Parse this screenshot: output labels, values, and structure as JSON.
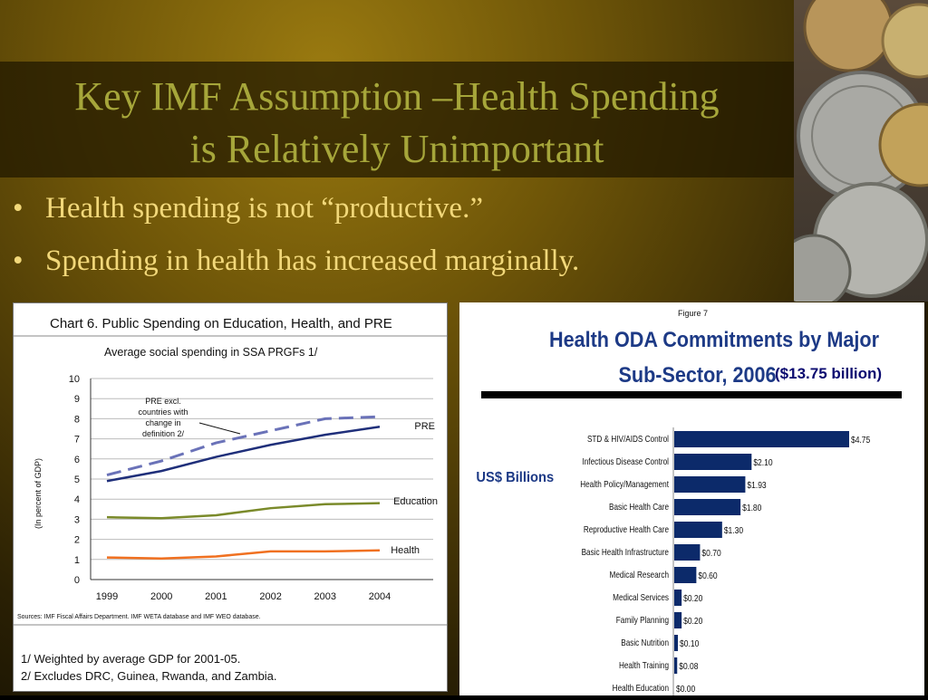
{
  "slide": {
    "title_line1": "Key IMF Assumption –Health Spending",
    "title_line2": "is Relatively Unimportant",
    "bullets": [
      "Health spending is not “productive.”",
      "Spending in health has increased marginally."
    ],
    "bullet_glyph": "•",
    "colors": {
      "title": "#a6a63a",
      "bullets": "#f2d87a"
    }
  },
  "left_chart_text": {
    "header": "Chart 6. Public Spending on Education, Health, and PRE",
    "subtitle": "Average social spending in SSA PRGFs 1/",
    "annotation": [
      "PRE excl.",
      "countries with",
      "change in",
      "definition 2/"
    ],
    "sources": "Sources: IMF Fiscal Affairs Department. IMF WETA database and IMF WEO database.",
    "footnote1": "1/ Weighted by average GDP for 2001-05.",
    "footnote2": "2/  Excludes DRC, Guinea, Rwanda, and Zambia."
  },
  "right_chart_text": {
    "figure_label": "Figure 7",
    "title_line1": "Health ODA Commitments by Major",
    "title_line2": "Sub-Sector, 2006",
    "total": "($13.75 billion)",
    "unit_label": "US$ Billions"
  },
  "chart_data": [
    {
      "type": "line",
      "title": "Average social spending in SSA PRGFs 1/",
      "ylabel": "(In percent of GDP)",
      "x": [
        1999,
        2000,
        2001,
        2002,
        2003,
        2004
      ],
      "x_ticks": [
        "1999",
        "2000",
        "2001",
        "2002",
        "2003",
        "2004"
      ],
      "ylim": [
        0,
        10
      ],
      "y_ticks": [
        "0",
        "1",
        "2",
        "3",
        "4",
        "5",
        "6",
        "7",
        "8",
        "9",
        "10"
      ],
      "grid": true,
      "series": [
        {
          "name": "PRE",
          "values": [
            4.9,
            5.4,
            6.1,
            6.7,
            7.2,
            7.6
          ],
          "color": "#1f2f7a",
          "style": "solid"
        },
        {
          "name": "",
          "values": [
            5.2,
            5.9,
            6.8,
            7.4,
            8.0,
            8.1
          ],
          "color": "#6a72b8",
          "style": "dashed"
        },
        {
          "name": "Education",
          "values": [
            3.1,
            3.05,
            3.2,
            3.55,
            3.75,
            3.8
          ],
          "color": "#7a8a2a",
          "style": "solid"
        },
        {
          "name": "Health",
          "values": [
            1.1,
            1.05,
            1.15,
            1.4,
            1.4,
            1.45
          ],
          "color": "#f07020",
          "style": "solid"
        }
      ]
    },
    {
      "type": "bar",
      "orientation": "horizontal",
      "title": "Health ODA Commitments by Major Sub-Sector, 2006",
      "ylabel": "US$ Billions",
      "color": "#0c2a6a",
      "categories": [
        "STD & HIV/AIDS Control",
        "Infectious Disease Control",
        "Health Policy/Management",
        "Basic Health Care",
        "Reproductive Health Care",
        "Basic Health Infrastructure",
        "Medical Research",
        "Medical Services",
        "Family Planning",
        "Basic Nutrition",
        "Health Training",
        "Health Education"
      ],
      "values": [
        4.75,
        2.1,
        1.93,
        1.8,
        1.3,
        0.7,
        0.6,
        0.2,
        0.2,
        0.1,
        0.08,
        0.0
      ],
      "value_labels": [
        "$4.75",
        "$2.10",
        "$1.93",
        "$1.80",
        "$1.30",
        "$0.70",
        "$0.60",
        "$0.20",
        "$0.20",
        "$0.10",
        "$0.08",
        "$0.00"
      ],
      "xlim": [
        0,
        4.75
      ]
    }
  ]
}
